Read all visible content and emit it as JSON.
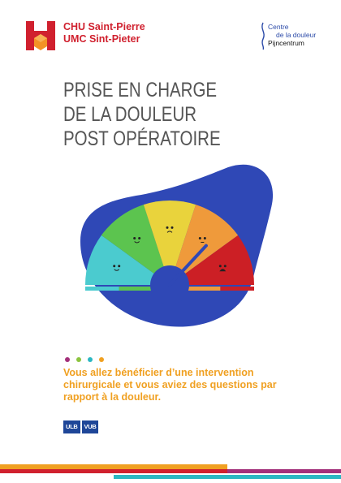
{
  "header": {
    "org_name_line1": "CHU Saint-Pierre",
    "org_name_line2": "UMC Sint-Pieter",
    "pain_centre_line1": "Centre",
    "pain_centre_line2": "de la douleur",
    "pain_centre_line3": "Pijncentrum"
  },
  "title": {
    "line1": "PRISE EN CHARGE",
    "line2": "DE LA DOULEUR",
    "line3": "POST OPÉRATOIRE"
  },
  "intro": "Vous allez bénéficier d’une intervention chirurgicale et vous aviez des questions par rapport à la douleur.",
  "university_logos": [
    "ULB",
    "VUB"
  ],
  "colors": {
    "brand_red": "#d0202e",
    "title_gray": "#555555",
    "orange_text": "#f0a021",
    "blob_blue": "#2f48b6",
    "gauge_cyan": "#4bcbcf",
    "gauge_green": "#5cc44f",
    "gauge_yellow": "#e9d33c",
    "gauge_orange": "#ef9a3b",
    "gauge_red": "#cc1f25",
    "dot_colors": [
      "#a3307a",
      "#8cc43f",
      "#2bb7c2",
      "#f0a021"
    ]
  },
  "gauge": {
    "levels": 5,
    "needle_level": 4
  }
}
